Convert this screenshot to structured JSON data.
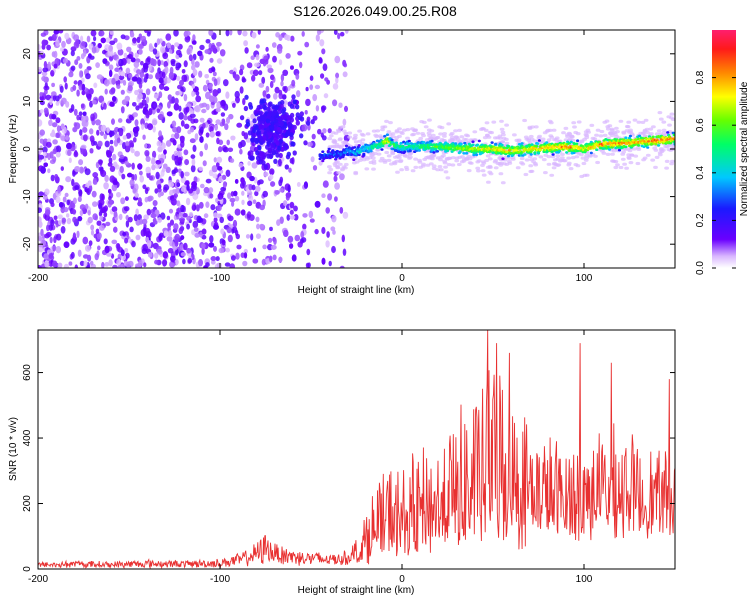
{
  "title": "S126.2026.049.00.25.R08",
  "chart_data": [
    {
      "type": "heatmap",
      "name": "spectrogram",
      "xlabel": "Height of straight line (km)",
      "ylabel": "Frequency (Hz)",
      "xlim": [
        -200,
        150
      ],
      "ylim": [
        -25,
        25
      ],
      "xticks": [
        -200,
        -100,
        0,
        100
      ],
      "yticks": [
        -20,
        -10,
        0,
        10,
        20
      ],
      "ridge": {
        "description": "high-amplitude signal ridge near 0 Hz",
        "x": [
          -45,
          -40,
          -35,
          -30,
          -25,
          -20,
          -15,
          -12,
          -8,
          -5,
          0,
          10,
          20,
          30,
          40,
          50,
          60,
          70,
          80,
          90,
          100,
          110,
          120,
          130,
          140,
          150
        ],
        "y": [
          -1.5,
          -1.0,
          -1.2,
          -0.3,
          -0.8,
          0.2,
          0.5,
          1.0,
          1.8,
          0.8,
          0.5,
          0.6,
          0.5,
          0.2,
          0.0,
          0.0,
          -0.4,
          0.0,
          0.3,
          0.5,
          0.0,
          1.0,
          1.2,
          1.5,
          1.8,
          2.2
        ],
        "amplitude": [
          0.25,
          0.3,
          0.3,
          0.35,
          0.4,
          0.45,
          0.5,
          0.55,
          0.75,
          0.55,
          0.5,
          0.55,
          0.6,
          0.65,
          0.7,
          0.75,
          0.8,
          0.75,
          0.8,
          0.85,
          0.75,
          0.85,
          0.85,
          0.8,
          0.9,
          0.8
        ]
      }
    },
    {
      "type": "colorbar",
      "name": "colorbar",
      "label": "Normalized spectral amplitude",
      "range": [
        0.0,
        1.0
      ],
      "ticks": [
        "0.0",
        "0.2",
        "0.4",
        "0.6",
        "0.8"
      ],
      "tick_values": [
        0.0,
        0.2,
        0.4,
        0.6,
        0.8
      ]
    },
    {
      "type": "line",
      "name": "snr",
      "xlabel": "Height of straight line (km)",
      "ylabel": "SNR (10 * v/v)",
      "xlim": [
        -200,
        150
      ],
      "ylim": [
        0,
        730
      ],
      "xticks": [
        -200,
        -100,
        0,
        100
      ],
      "yticks": [
        0,
        200,
        400,
        600
      ],
      "color": "#e83030",
      "series": [
        {
          "name": "SNR",
          "x": [
            -200,
            -180,
            -160,
            -140,
            -120,
            -100,
            -90,
            -80,
            -75,
            -70,
            -60,
            -50,
            -45,
            -40,
            -30,
            -25,
            -20,
            -15,
            -10,
            -5,
            0,
            10,
            20,
            25,
            30,
            40,
            45,
            50,
            55,
            60,
            70,
            80,
            90,
            100,
            110,
            120,
            130,
            140,
            150
          ],
          "y": [
            20,
            25,
            22,
            28,
            25,
            30,
            45,
            75,
            110,
            80,
            60,
            55,
            50,
            45,
            55,
            90,
            170,
            250,
            300,
            320,
            300,
            350,
            380,
            420,
            480,
            520,
            580,
            650,
            600,
            520,
            440,
            400,
            380,
            400,
            410,
            420,
            380,
            360,
            330
          ],
          "band_low": [
            5,
            5,
            5,
            5,
            5,
            5,
            10,
            15,
            20,
            20,
            15,
            10,
            10,
            10,
            15,
            20,
            30,
            40,
            50,
            60,
            60,
            70,
            80,
            80,
            90,
            100,
            100,
            110,
            100,
            100,
            110,
            110,
            100,
            120,
            120,
            130,
            120,
            120,
            120
          ],
          "peaks": [
            {
              "x": 47,
              "y": 730
            },
            {
              "x": 52,
              "y": 690
            },
            {
              "x": 59,
              "y": 660
            },
            {
              "x": 98,
              "y": 690
            },
            {
              "x": 115,
              "y": 630
            },
            {
              "x": 147,
              "y": 580
            }
          ]
        }
      ]
    }
  ]
}
